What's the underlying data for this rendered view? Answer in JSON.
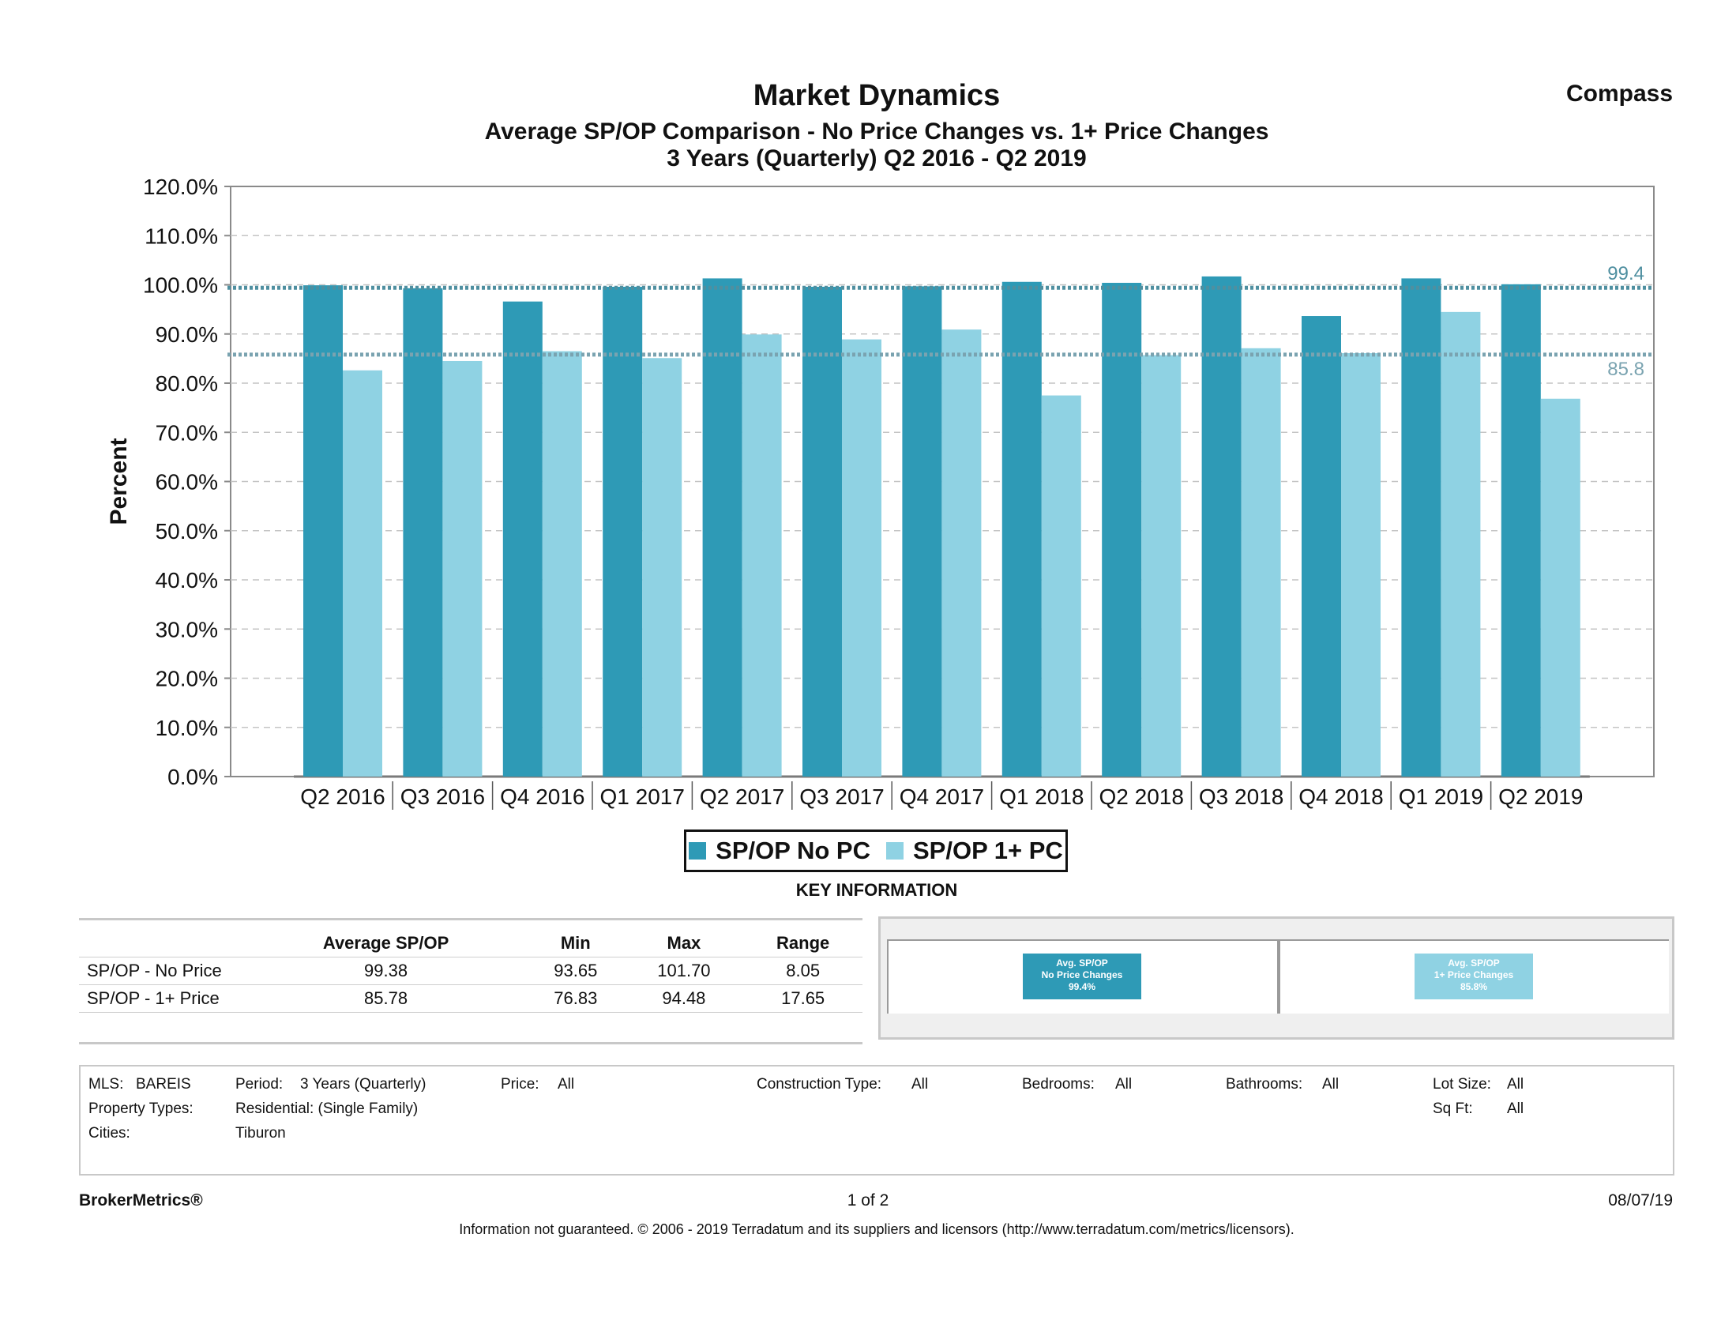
{
  "header": {
    "title": "Market Dynamics",
    "subtitle": "Average SP/OP Comparison - No Price Changes vs. 1+ Price Changes",
    "subtitle2": "3 Years (Quarterly) Q2 2016 - Q2 2019",
    "brand": "Compass"
  },
  "chart_data": {
    "type": "bar",
    "title": "Average SP/OP Comparison - No Price Changes vs. 1+ Price Changes",
    "xlabel": "",
    "ylabel": "Percent",
    "ylim": [
      0,
      120
    ],
    "yticks": [
      "0.0%",
      "10.0%",
      "20.0%",
      "30.0%",
      "40.0%",
      "50.0%",
      "60.0%",
      "70.0%",
      "80.0%",
      "90.0%",
      "100.0%",
      "110.0%",
      "120.0%"
    ],
    "categories": [
      "Q2 2016",
      "Q3 2016",
      "Q4 2016",
      "Q1 2017",
      "Q2 2017",
      "Q3 2017",
      "Q4 2017",
      "Q1 2018",
      "Q2 2018",
      "Q3 2018",
      "Q4 2018",
      "Q1 2019",
      "Q2 2019"
    ],
    "series": [
      {
        "name": "SP/OP No PC",
        "color": "#2e9ab6",
        "values": [
          99.9,
          99.3,
          96.6,
          99.6,
          101.3,
          99.6,
          99.7,
          100.6,
          100.4,
          101.7,
          93.65,
          101.3,
          100.1
        ]
      },
      {
        "name": "SP/OP 1+ PC",
        "color": "#8fd2e3",
        "values": [
          82.6,
          84.5,
          86.5,
          85.1,
          89.9,
          88.9,
          90.9,
          77.5,
          85.7,
          87.1,
          86.1,
          94.48,
          76.83
        ]
      }
    ],
    "reference_lines": [
      {
        "label": "99.4",
        "value": 99.4,
        "color": "#4f8fa0"
      },
      {
        "label": "85.8",
        "value": 85.8,
        "color": "#7aa3b0"
      }
    ],
    "grid": true,
    "legend": "bottom-center"
  },
  "legend": {
    "items": [
      {
        "label": "SP/OP No PC",
        "color": "#2e9ab6"
      },
      {
        "label": "SP/OP 1+ PC",
        "color": "#8fd2e3"
      }
    ]
  },
  "key_info": {
    "title": "KEY INFORMATION",
    "headers": [
      "",
      "Average SP/OP",
      "Min",
      "Max",
      "Range"
    ],
    "rows": [
      [
        "SP/OP - No Price",
        "99.38",
        "93.65",
        "101.70",
        "8.05"
      ],
      [
        "SP/OP - 1+ Price",
        "85.78",
        "76.83",
        "94.48",
        "17.65"
      ]
    ],
    "badges": [
      {
        "lines": [
          "Avg. SP/OP",
          "No Price Changes",
          "99.4%"
        ],
        "color": "#2e9ab6"
      },
      {
        "lines": [
          "Avg. SP/OP",
          "1+ Price Changes",
          "85.8%"
        ],
        "color": "#8fd2e3"
      }
    ]
  },
  "filters": {
    "mls_label": "MLS:",
    "mls_value": "BAREIS",
    "period_label": "Period:",
    "period_value": "3 Years (Quarterly)",
    "price_label": "Price:",
    "price_value": "All",
    "construction_label": "Construction Type:",
    "construction_value": "All",
    "bedrooms_label": "Bedrooms:",
    "bedrooms_value": "All",
    "bathrooms_label": "Bathrooms:",
    "bathrooms_value": "All",
    "lotsize_label": "Lot Size:",
    "lotsize_value": "All",
    "proptypes_label": "Property Types:",
    "proptypes_value": "Residential: (Single Family)",
    "sqft_label": "Sq Ft:",
    "sqft_value": "All",
    "cities_label": "Cities:",
    "cities_value": "Tiburon"
  },
  "footer": {
    "left": "BrokerMetrics®",
    "page": "1 of 2",
    "date": "08/07/19",
    "disclaimer": "Information not guaranteed.  © 2006 - 2019 Terradatum and its suppliers and licensors (http://www.terradatum.com/metrics/licensors)."
  }
}
